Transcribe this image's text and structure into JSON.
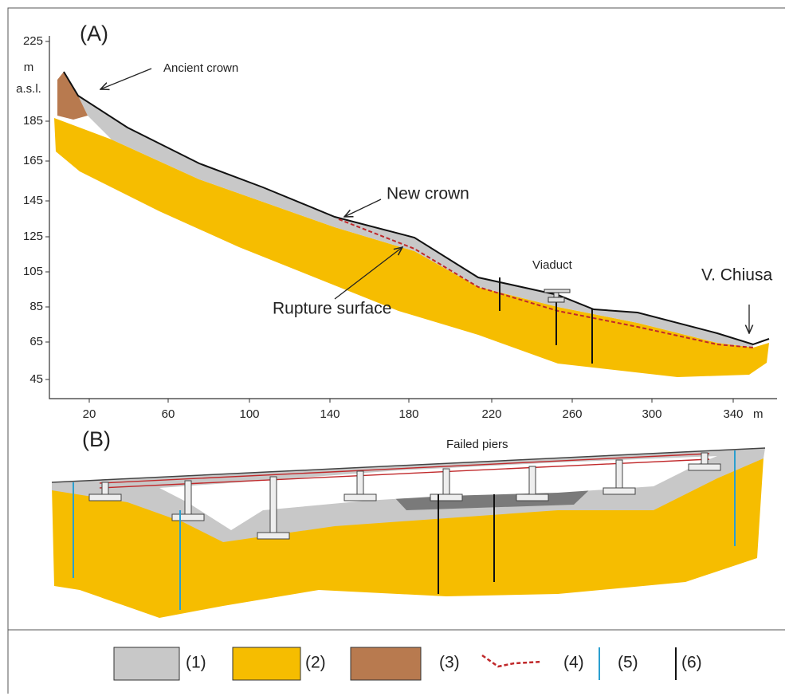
{
  "panel_a": {
    "label": "(A)",
    "y_unit": [
      "m",
      "a.s.l."
    ],
    "yticks": [
      "225",
      "185",
      "165",
      "145",
      "125",
      "105",
      "85",
      "65",
      "45"
    ],
    "xticks": [
      "20",
      "60",
      "100",
      "140",
      "180",
      "220",
      "260",
      "300",
      "340"
    ],
    "x_unit": "m",
    "ancient_crown": "Ancient crown",
    "new_crown": "New crown",
    "rupture_surface": "Rupture surface",
    "viaduct": "Viaduct",
    "v_chiusa": "V. Chiusa"
  },
  "panel_b": {
    "label": "(B)",
    "failed_piers": "Failed piers"
  },
  "legend": [
    "(1)",
    "(2)",
    "(3)",
    "(4)",
    "(5)",
    "(6)"
  ]
}
